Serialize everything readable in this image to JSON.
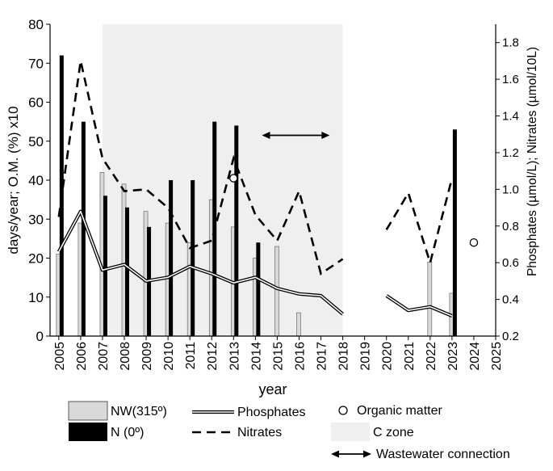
{
  "chart_data": {
    "type": "bar",
    "x_axis": {
      "label": "year",
      "range": [
        2004.6,
        2025
      ],
      "ticks": [
        "2005",
        "2006",
        "2007",
        "2008",
        "2009",
        "2010",
        "2011",
        "2012",
        "2013",
        "2014",
        "2015",
        "2016",
        "2017",
        "2018",
        "2019",
        "2020",
        "2021",
        "2022",
        "2023",
        "2024",
        "2025"
      ]
    },
    "y_left": {
      "label": "days/year;  O.M. (%) x10",
      "range": [
        0,
        80
      ],
      "ticks": [
        "0",
        "10",
        "20",
        "30",
        "40",
        "50",
        "60",
        "70",
        "80"
      ]
    },
    "y_right": {
      "label": "Phosphates (µmol/L); Nitrates (µmol/10L)",
      "range": [
        0.2,
        1.9
      ],
      "ticks": [
        "0.2",
        "0.4",
        "0.6",
        "0.8",
        "1.0",
        "1.2",
        "1.4",
        "1.6",
        "1.8"
      ]
    },
    "c_zone": {
      "x_start": 2007,
      "x_end": 2018,
      "color": "#efefef"
    },
    "series": [
      {
        "name": "NW(315º)",
        "kind": "bar",
        "axis": "left",
        "color": "#d9d9d9",
        "points": [
          [
            2005,
            21
          ],
          [
            2006,
            29
          ],
          [
            2007,
            42
          ],
          [
            2008,
            39
          ],
          [
            2009,
            32
          ],
          [
            2010,
            29
          ],
          [
            2011,
            24
          ],
          [
            2012,
            35
          ],
          [
            2013,
            28
          ],
          [
            2014,
            20
          ],
          [
            2015,
            23
          ],
          [
            2016,
            6
          ],
          [
            2022,
            19
          ],
          [
            2023,
            11
          ]
        ]
      },
      {
        "name": "N (0º)",
        "kind": "bar",
        "axis": "left",
        "color": "#000000",
        "points": [
          [
            2005,
            72
          ],
          [
            2006,
            55
          ],
          [
            2007,
            36
          ],
          [
            2008,
            33
          ],
          [
            2009,
            28
          ],
          [
            2010,
            40
          ],
          [
            2011,
            40
          ],
          [
            2012,
            55
          ],
          [
            2013,
            54
          ],
          [
            2014,
            24
          ],
          [
            2023,
            53
          ]
        ]
      },
      {
        "name": "Phosphates",
        "kind": "double-line",
        "axis": "right",
        "segments": [
          [
            [
              2005,
              0.66
            ],
            [
              2006,
              0.88
            ],
            [
              2007,
              0.56
            ],
            [
              2008,
              0.59
            ],
            [
              2009,
              0.5
            ],
            [
              2010,
              0.52
            ],
            [
              2011,
              0.58
            ],
            [
              2012,
              0.54
            ],
            [
              2013,
              0.49
            ],
            [
              2014,
              0.52
            ],
            [
              2015,
              0.46
            ],
            [
              2016,
              0.43
            ],
            [
              2017,
              0.42
            ],
            [
              2018,
              0.32
            ]
          ],
          [
            [
              2020,
              0.42
            ],
            [
              2021,
              0.34
            ],
            [
              2022,
              0.36
            ],
            [
              2023,
              0.31
            ]
          ]
        ]
      },
      {
        "name": "Nitrates",
        "kind": "dashed-line",
        "axis": "right",
        "segments": [
          [
            [
              2005,
              0.85
            ],
            [
              2006,
              1.7
            ],
            [
              2007,
              1.17
            ],
            [
              2008,
              0.99
            ],
            [
              2009,
              1.0
            ],
            [
              2010,
              0.9
            ],
            [
              2011,
              0.68
            ],
            [
              2012,
              0.72
            ],
            [
              2013,
              1.17
            ],
            [
              2014,
              0.86
            ],
            [
              2015,
              0.72
            ],
            [
              2016,
              0.99
            ],
            [
              2017,
              0.54
            ],
            [
              2018,
              0.62
            ]
          ],
          [
            [
              2020,
              0.78
            ],
            [
              2021,
              0.98
            ],
            [
              2022,
              0.6
            ],
            [
              2023,
              1.06
            ]
          ]
        ]
      },
      {
        "name": "Organic matter",
        "kind": "marker",
        "axis": "left",
        "points": [
          [
            2013,
            40.5
          ],
          [
            2024,
            24
          ]
        ]
      }
    ],
    "annotation": {
      "name": "Wastewater connection",
      "kind": "double-arrow",
      "x_start": 2014.3,
      "x_end": 2017.4,
      "y": 51.5
    },
    "legend": {
      "placement": "bottom",
      "items": [
        {
          "key": "nw",
          "label": "NW(315º)"
        },
        {
          "key": "n",
          "label": "N (0º)"
        },
        {
          "key": "phos",
          "label": "Phosphates"
        },
        {
          "key": "nit",
          "label": "Nitrates"
        },
        {
          "key": "om",
          "label": "Organic matter"
        },
        {
          "key": "cz",
          "label": "C zone"
        },
        {
          "key": "ww",
          "label": "Wastewater connection"
        }
      ]
    }
  }
}
